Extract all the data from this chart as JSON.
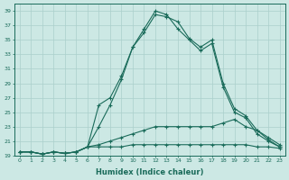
{
  "xlabel": "Humidex (Indice chaleur)",
  "ylabel": "",
  "bg_color": "#cce8e4",
  "line_color": "#1a6b5a",
  "grid_color": "#aacfcb",
  "xlim": [
    -0.5,
    23.5
  ],
  "ylim": [
    19,
    40
  ],
  "yticks": [
    19,
    21,
    23,
    25,
    27,
    29,
    31,
    33,
    35,
    37,
    39
  ],
  "xticks": [
    0,
    1,
    2,
    3,
    4,
    5,
    6,
    7,
    8,
    9,
    10,
    11,
    12,
    13,
    14,
    15,
    16,
    17,
    18,
    19,
    20,
    21,
    22,
    23
  ],
  "series": [
    [
      19.5,
      19.5,
      19.2,
      19.5,
      19.3,
      19.5,
      20.2,
      23.0,
      26.0,
      29.5,
      34.0,
      36.5,
      39.0,
      38.5,
      36.5,
      35.0,
      33.5,
      34.5,
      28.5,
      25.0,
      24.2,
      22.0,
      21.0,
      20.2
    ],
    [
      19.5,
      19.5,
      19.2,
      19.5,
      19.3,
      19.5,
      20.2,
      26.0,
      27.0,
      30.0,
      34.0,
      36.0,
      38.5,
      38.2,
      37.5,
      35.2,
      34.0,
      35.0,
      29.0,
      25.5,
      24.5,
      22.5,
      21.2,
      20.2
    ],
    [
      19.5,
      19.5,
      19.2,
      19.5,
      19.3,
      19.5,
      20.2,
      20.5,
      21.0,
      21.5,
      22.0,
      22.5,
      23.0,
      23.0,
      23.0,
      23.0,
      23.0,
      23.0,
      23.5,
      24.0,
      23.0,
      22.5,
      21.5,
      20.5
    ],
    [
      19.5,
      19.5,
      19.2,
      19.5,
      19.3,
      19.5,
      20.2,
      20.2,
      20.2,
      20.2,
      20.5,
      20.5,
      20.5,
      20.5,
      20.5,
      20.5,
      20.5,
      20.5,
      20.5,
      20.5,
      20.5,
      20.2,
      20.2,
      20.0
    ]
  ]
}
